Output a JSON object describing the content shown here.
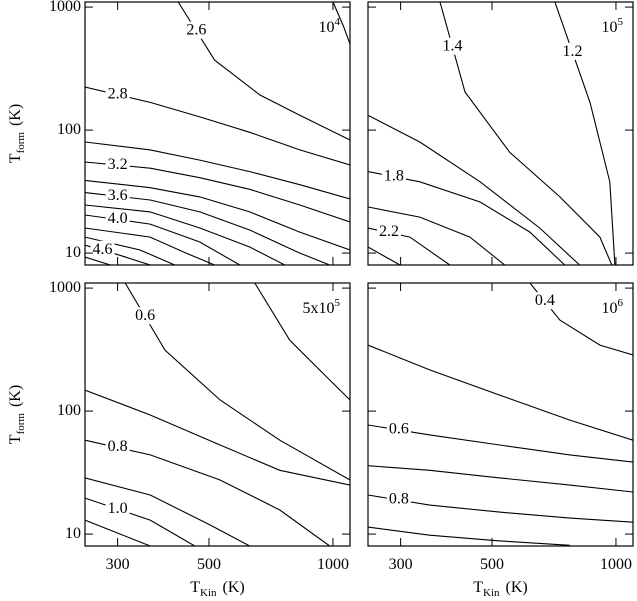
{
  "chart_data": [
    {
      "type": "contour",
      "annotation": {
        "base": "10",
        "exponent": "4"
      },
      "ylabel": {
        "main": "T",
        "sub": "form",
        "unit": "(K)"
      },
      "xlim": [
        250,
        1100
      ],
      "ylim": [
        8,
        1100
      ],
      "xlog": true,
      "ylog": true,
      "xticks": [
        300,
        500,
        1000
      ],
      "yticks": [
        10,
        100,
        1000
      ],
      "xtick_labels": false,
      "ytick_labels": true,
      "contours": [
        {
          "x": [
            1000,
            1060,
            1100
          ],
          "y": [
            1100,
            700,
            500
          ]
        },
        {
          "level": 2.6,
          "x": [
            421,
            516,
            665,
            831,
            1100
          ],
          "y": [
            1100,
            371,
            193,
            132,
            83
          ]
        },
        {
          "level": 2.8,
          "x": [
            250,
            360,
            475,
            628,
            831,
            1100
          ],
          "y": [
            224,
            168,
            128,
            96,
            69,
            52
          ]
        },
        {
          "x": [
            250,
            360,
            475,
            628,
            831,
            1100
          ],
          "y": [
            80,
            69,
            57,
            46,
            36,
            27.5
          ]
        },
        {
          "level": 3.2,
          "x": [
            250,
            360,
            475,
            628,
            831,
            1100
          ],
          "y": [
            55,
            49,
            41,
            33,
            24.6,
            17.9
          ]
        },
        {
          "x": [
            250,
            360,
            475,
            628,
            831,
            1100
          ],
          "y": [
            39,
            34,
            28.6,
            21.6,
            14.8,
            10.6
          ]
        },
        {
          "level": 3.6,
          "x": [
            250,
            360,
            475,
            628,
            831,
            982
          ],
          "y": [
            31,
            27,
            21.6,
            15.4,
            10,
            8
          ]
        },
        {
          "x": [
            250,
            360,
            475,
            628,
            764
          ],
          "y": [
            24.6,
            21.6,
            16,
            11.2,
            8
          ]
        },
        {
          "level": 4,
          "level_label": "4.0",
          "x": [
            250,
            360,
            475,
            594
          ],
          "y": [
            20.4,
            17.2,
            12.3,
            8
          ]
        },
        {
          "x": [
            250,
            360,
            440,
            516
          ],
          "y": [
            16,
            13.5,
            10,
            8
          ]
        },
        {
          "x": [
            250,
            340,
            413
          ],
          "y": [
            13.5,
            10.6,
            8
          ]
        },
        {
          "level": 4.6,
          "x": [
            250,
            304,
            360
          ],
          "y": [
            11.6,
            9.6,
            8
          ]
        },
        {
          "x": [
            250,
            288
          ],
          "y": [
            9.3,
            8
          ]
        }
      ]
    },
    {
      "type": "contour",
      "annotation": {
        "base": "10",
        "exponent": "5"
      },
      "xlim": [
        250,
        1100
      ],
      "ylim": [
        8,
        1100
      ],
      "xlog": true,
      "ylog": true,
      "xticks": [
        300,
        500,
        1000
      ],
      "yticks": [
        10,
        100,
        1000
      ],
      "xtick_labels": false,
      "ytick_labels": false,
      "contours": [
        {
          "level": 1.4,
          "x": [
            374,
            430,
            552,
            731,
            914,
            977
          ],
          "y": [
            1100,
            204,
            66,
            28.6,
            13.5,
            8
          ]
        },
        {
          "level": 1.2,
          "x": [
            711,
            865,
            966,
            994
          ],
          "y": [
            1100,
            168,
            38,
            8
          ]
        },
        {
          "x": [
            250,
            334,
            468,
            653,
            816
          ],
          "y": [
            132,
            80,
            38,
            16,
            8
          ]
        },
        {
          "level": 1.8,
          "x": [
            250,
            334,
            468,
            618,
            751
          ],
          "y": [
            46,
            38,
            26,
            14.8,
            8
          ]
        },
        {
          "x": [
            250,
            334,
            442,
            537
          ],
          "y": [
            23.7,
            19.6,
            13.5,
            8
          ]
        },
        {
          "level": 2.2,
          "x": [
            250,
            316,
            395
          ],
          "y": [
            16,
            13.5,
            8
          ]
        },
        {
          "x": [
            250,
            299
          ],
          "y": [
            11.2,
            8
          ]
        }
      ]
    },
    {
      "type": "contour",
      "annotation": {
        "base": "5x10",
        "exponent": "5"
      },
      "xlabel": {
        "main": "T",
        "sub": "Kin",
        "unit": "(K)"
      },
      "ylabel": {
        "main": "T",
        "sub": "form",
        "unit": "(K)"
      },
      "xlim": [
        250,
        1100
      ],
      "ylim": [
        8,
        1100
      ],
      "xlog": true,
      "ylog": true,
      "xticks": [
        300,
        500,
        1000
      ],
      "yticks": [
        10,
        100,
        1000
      ],
      "xtick_labels": true,
      "ytick_labels": true,
      "contours": [
        {
          "level": 0.6,
          "x": [
            313,
            391,
            532,
            743,
            1100
          ],
          "y": [
            1100,
            313,
            123,
            58,
            27.5
          ]
        },
        {
          "x": [
            646,
            785,
            982,
            1100
          ],
          "y": [
            1100,
            378,
            179,
            123
          ]
        },
        {
          "x": [
            250,
            360,
            532,
            743,
            1100
          ],
          "y": [
            148,
            93,
            53,
            33,
            25
          ]
        },
        {
          "level": 0.8,
          "x": [
            250,
            360,
            532,
            743,
            982
          ],
          "y": [
            58,
            44,
            27.5,
            15.7,
            8
          ]
        },
        {
          "x": [
            250,
            360,
            502,
            628
          ],
          "y": [
            28.6,
            20.8,
            11.9,
            8
          ]
        },
        {
          "level": 1,
          "level_label": "1.0",
          "x": [
            250,
            360,
            462
          ],
          "y": [
            19.6,
            13,
            8
          ]
        },
        {
          "x": [
            250,
            360
          ],
          "y": [
            13,
            8
          ]
        }
      ]
    },
    {
      "type": "contour",
      "annotation": {
        "base": "10",
        "exponent": "6"
      },
      "xlabel": {
        "main": "T",
        "sub": "Kin",
        "unit": "(K)"
      },
      "xlim": [
        250,
        1100
      ],
      "ylim": [
        8,
        1100
      ],
      "xlog": true,
      "ylog": true,
      "xticks": [
        300,
        500,
        1000
      ],
      "yticks": [
        10,
        100,
        1000
      ],
      "xtick_labels": true,
      "ytick_labels": false,
      "contours": [
        {
          "level": 0.4,
          "x": [
            618,
            731,
            914,
            1100
          ],
          "y": [
            1100,
            549,
            344,
            286
          ]
        },
        {
          "x": [
            250,
            353,
            522,
            773,
            1100
          ],
          "y": [
            344,
            216,
            135,
            84.5,
            58
          ]
        },
        {
          "level": 0.6,
          "x": [
            250,
            353,
            522,
            773,
            1100
          ],
          "y": [
            77,
            64,
            53,
            44,
            38.5
          ]
        },
        {
          "x": [
            250,
            353,
            522,
            773,
            1100
          ],
          "y": [
            36,
            33,
            28.6,
            25,
            22
          ]
        },
        {
          "level": 0.8,
          "x": [
            250,
            353,
            522,
            773,
            1100
          ],
          "y": [
            20.8,
            17.2,
            15.1,
            13.5,
            12.5
          ]
        },
        {
          "x": [
            250,
            353,
            522,
            773
          ],
          "y": [
            11.4,
            9.8,
            8.8,
            8.1
          ]
        }
      ]
    }
  ]
}
